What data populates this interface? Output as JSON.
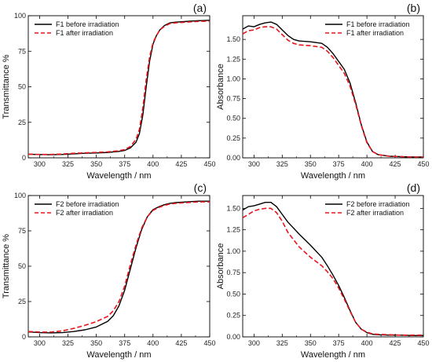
{
  "chart_data": [
    {
      "type": "line",
      "panel_label": "(a)",
      "xlabel": "Wavelength / nm",
      "ylabel": "Transmittance %",
      "xlim": [
        290,
        450
      ],
      "ylim": [
        0,
        100
      ],
      "xticks": [
        300,
        325,
        350,
        375,
        400,
        425,
        450
      ],
      "yticks": [
        0,
        25,
        50,
        75,
        100
      ],
      "ytick_labels": [
        "0",
        "25",
        "50",
        "75",
        "100"
      ],
      "legend_position": "top-left",
      "series": [
        {
          "name": "F1 before irradiation",
          "color": "#000000",
          "dash": "solid",
          "x": [
            290,
            300,
            310,
            320,
            330,
            340,
            350,
            360,
            370,
            375,
            380,
            385,
            388,
            391,
            394,
            397,
            400,
            403,
            406,
            410,
            415,
            420,
            430,
            440,
            450
          ],
          "y": [
            2.5,
            2.3,
            2.2,
            2.4,
            2.8,
            3.2,
            3.4,
            3.8,
            4.5,
            5.2,
            7.0,
            11,
            17,
            30,
            50,
            68,
            80,
            86,
            90,
            93,
            95,
            95.5,
            96,
            96.5,
            96.8
          ]
        },
        {
          "name": "F1 after irradiation",
          "color": "#e8141b",
          "dash": "dashed",
          "x": [
            290,
            300,
            310,
            320,
            330,
            340,
            350,
            360,
            370,
            375,
            380,
            385,
            388,
            391,
            394,
            397,
            400,
            403,
            406,
            410,
            415,
            420,
            430,
            440,
            450
          ],
          "y": [
            2.6,
            2.4,
            2.4,
            2.7,
            3.2,
            3.5,
            3.8,
            4.2,
            5.0,
            5.8,
            8.0,
            13,
            20,
            35,
            55,
            71,
            81,
            86,
            90,
            92.5,
            94.5,
            95,
            95.5,
            96,
            96.2
          ]
        }
      ]
    },
    {
      "type": "line",
      "panel_label": "(b)",
      "xlabel": "Wavelength / nm",
      "ylabel": "Absorbance",
      "xlim": [
        290,
        450
      ],
      "ylim": [
        0,
        1.8
      ],
      "xticks": [
        300,
        325,
        350,
        375,
        400,
        425,
        450
      ],
      "yticks": [
        0,
        0.25,
        0.5,
        0.75,
        1.0,
        1.25,
        1.5
      ],
      "ytick_labels": [
        "0.00",
        "0.25",
        "0.50",
        "0.75",
        "1.00",
        "1.25",
        "1.50"
      ],
      "legend_position": "top-right",
      "series": [
        {
          "name": "F1 before irradiation",
          "color": "#000000",
          "dash": "solid",
          "x": [
            290,
            295,
            300,
            305,
            310,
            315,
            320,
            325,
            330,
            335,
            340,
            350,
            360,
            365,
            370,
            375,
            380,
            385,
            390,
            395,
            400,
            405,
            410,
            420,
            430,
            440,
            450
          ],
          "y": [
            1.63,
            1.67,
            1.66,
            1.69,
            1.71,
            1.72,
            1.69,
            1.62,
            1.55,
            1.5,
            1.48,
            1.47,
            1.45,
            1.4,
            1.32,
            1.22,
            1.12,
            0.95,
            0.7,
            0.42,
            0.2,
            0.08,
            0.04,
            0.02,
            0.015,
            0.01,
            0.01
          ]
        },
        {
          "name": "F1 after irradiation",
          "color": "#e8141b",
          "dash": "dashed",
          "x": [
            290,
            295,
            300,
            305,
            310,
            315,
            320,
            325,
            330,
            335,
            340,
            350,
            360,
            365,
            370,
            375,
            380,
            385,
            390,
            395,
            400,
            405,
            410,
            420,
            430,
            440,
            450
          ],
          "y": [
            1.57,
            1.61,
            1.62,
            1.65,
            1.66,
            1.66,
            1.63,
            1.56,
            1.49,
            1.45,
            1.43,
            1.42,
            1.4,
            1.35,
            1.27,
            1.17,
            1.07,
            0.91,
            0.68,
            0.41,
            0.19,
            0.08,
            0.04,
            0.02,
            0.015,
            0.01,
            0.01
          ]
        }
      ]
    },
    {
      "type": "line",
      "panel_label": "(c)",
      "xlabel": "Wavelength / nm",
      "ylabel": "Transmittance %",
      "xlim": [
        290,
        450
      ],
      "ylim": [
        0,
        100
      ],
      "xticks": [
        300,
        325,
        350,
        375,
        400,
        425,
        450
      ],
      "yticks": [
        0,
        25,
        50,
        75,
        100
      ],
      "ytick_labels": [
        "0",
        "25",
        "50",
        "75",
        "100"
      ],
      "legend_position": "top-left",
      "series": [
        {
          "name": "F2 before irradiation",
          "color": "#000000",
          "dash": "solid",
          "x": [
            290,
            300,
            310,
            320,
            330,
            340,
            350,
            360,
            365,
            370,
            375,
            380,
            385,
            390,
            395,
            400,
            405,
            410,
            415,
            420,
            430,
            440,
            450
          ],
          "y": [
            3.5,
            3.0,
            2.8,
            3.0,
            3.8,
            5.0,
            7.0,
            11,
            15,
            22,
            33,
            48,
            63,
            76,
            85,
            90,
            92,
            93.5,
            94.5,
            95,
            95.5,
            96,
            96
          ]
        },
        {
          "name": "F2 after irradiation",
          "color": "#e8141b",
          "dash": "dashed",
          "x": [
            290,
            300,
            310,
            320,
            330,
            340,
            350,
            360,
            365,
            370,
            375,
            380,
            385,
            390,
            395,
            400,
            405,
            410,
            415,
            420,
            430,
            440,
            450
          ],
          "y": [
            3.8,
            3.4,
            3.4,
            4.2,
            6.0,
            8.2,
            10.8,
            14.5,
            18.5,
            25,
            36,
            51,
            65,
            77,
            85,
            89.5,
            91.5,
            93,
            94,
            94.5,
            95,
            95.5,
            95.5
          ]
        }
      ]
    },
    {
      "type": "line",
      "panel_label": "(d)",
      "xlabel": "Wavelength / nm",
      "ylabel": "Absorbance",
      "xlim": [
        290,
        450
      ],
      "ylim": [
        0,
        1.65
      ],
      "xticks": [
        300,
        325,
        350,
        375,
        400,
        425,
        450
      ],
      "yticks": [
        0,
        0.25,
        0.5,
        0.75,
        1.0,
        1.25,
        1.5
      ],
      "ytick_labels": [
        "0.00",
        "0.25",
        "0.50",
        "0.75",
        "1.00",
        "1.25",
        "1.50"
      ],
      "legend_position": "top-right",
      "series": [
        {
          "name": "F2 before irradiation",
          "color": "#000000",
          "dash": "solid",
          "x": [
            290,
            295,
            300,
            305,
            310,
            315,
            320,
            325,
            330,
            340,
            350,
            360,
            365,
            370,
            375,
            380,
            385,
            390,
            395,
            400,
            405,
            410,
            420,
            430,
            440,
            450
          ],
          "y": [
            1.48,
            1.52,
            1.53,
            1.55,
            1.57,
            1.57,
            1.52,
            1.43,
            1.34,
            1.2,
            1.07,
            0.93,
            0.83,
            0.72,
            0.6,
            0.46,
            0.31,
            0.17,
            0.09,
            0.05,
            0.03,
            0.025,
            0.02,
            0.02,
            0.015,
            0.015
          ]
        },
        {
          "name": "F2 after irradiation",
          "color": "#e8141b",
          "dash": "dashed",
          "x": [
            290,
            295,
            300,
            305,
            310,
            315,
            320,
            325,
            330,
            340,
            350,
            360,
            365,
            370,
            375,
            380,
            385,
            390,
            395,
            400,
            405,
            410,
            420,
            430,
            440,
            450
          ],
          "y": [
            1.39,
            1.43,
            1.47,
            1.49,
            1.5,
            1.5,
            1.45,
            1.35,
            1.22,
            1.05,
            0.93,
            0.83,
            0.76,
            0.68,
            0.57,
            0.44,
            0.3,
            0.17,
            0.09,
            0.055,
            0.035,
            0.03,
            0.025,
            0.02,
            0.02,
            0.02
          ]
        }
      ]
    }
  ]
}
